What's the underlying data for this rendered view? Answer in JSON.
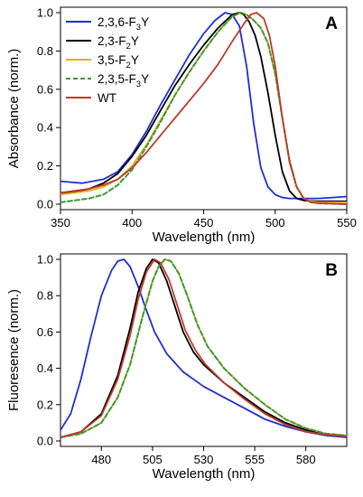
{
  "chart_data": [
    {
      "panel": "A",
      "type": "line",
      "xlabel": "Wavelength (nm)",
      "ylabel": "Absorbance (norm.)",
      "xlim": [
        350,
        550
      ],
      "ylim": [
        0.0,
        1.0
      ],
      "xticks": [
        350,
        400,
        450,
        500,
        550
      ],
      "yticks": [
        "0.0",
        "0.2",
        "0.4",
        "0.6",
        "0.8",
        "1.0"
      ],
      "legend": "top-left",
      "series": [
        {
          "name": "2,3,6-F3Y",
          "color": "#1f2fd0",
          "dash": false,
          "x": [
            350,
            365,
            380,
            390,
            400,
            410,
            420,
            430,
            440,
            450,
            458,
            465,
            470,
            475,
            480,
            485,
            490,
            495,
            500,
            505,
            510,
            520,
            530,
            540,
            550
          ],
          "y": [
            0.12,
            0.11,
            0.13,
            0.17,
            0.26,
            0.38,
            0.52,
            0.65,
            0.78,
            0.89,
            0.96,
            1.0,
            0.99,
            0.93,
            0.72,
            0.42,
            0.19,
            0.09,
            0.05,
            0.035,
            0.03,
            0.03,
            0.03,
            0.035,
            0.04
          ]
        },
        {
          "name": "2,3-F2Y",
          "color": "#000000",
          "dash": false,
          "x": [
            350,
            370,
            380,
            390,
            400,
            410,
            420,
            430,
            440,
            450,
            460,
            470,
            475,
            478,
            482,
            486,
            490,
            495,
            500,
            505,
            510,
            515,
            520,
            530,
            550
          ],
          "y": [
            0.05,
            0.08,
            0.11,
            0.16,
            0.25,
            0.36,
            0.49,
            0.62,
            0.73,
            0.83,
            0.92,
            0.99,
            1.0,
            0.99,
            0.95,
            0.88,
            0.77,
            0.58,
            0.36,
            0.17,
            0.07,
            0.03,
            0.02,
            0.015,
            0.015
          ]
        },
        {
          "name": "3,5-F2Y",
          "color": "#e0b020",
          "dash": false,
          "x": [
            350,
            370,
            380,
            390,
            400,
            410,
            420,
            430,
            440,
            450,
            460,
            470,
            476,
            480,
            485,
            490,
            495,
            500,
            505,
            510,
            515,
            520,
            525,
            530,
            550
          ],
          "y": [
            0.05,
            0.07,
            0.09,
            0.13,
            0.2,
            0.31,
            0.44,
            0.57,
            0.69,
            0.8,
            0.9,
            0.98,
            1.0,
            0.99,
            0.96,
            0.92,
            0.84,
            0.68,
            0.45,
            0.23,
            0.09,
            0.03,
            0.015,
            0.01,
            0.01
          ]
        },
        {
          "name": "2,3,5-F3Y",
          "color": "#3a9a30",
          "dash": true,
          "x": [
            350,
            370,
            380,
            390,
            400,
            410,
            420,
            430,
            440,
            450,
            460,
            470,
            476,
            480,
            485,
            490,
            495,
            500,
            505,
            510,
            515,
            520,
            525,
            530,
            550
          ],
          "y": [
            0.01,
            0.03,
            0.05,
            0.1,
            0.18,
            0.3,
            0.43,
            0.57,
            0.69,
            0.8,
            0.9,
            0.98,
            1.0,
            0.99,
            0.96,
            0.92,
            0.84,
            0.68,
            0.45,
            0.23,
            0.09,
            0.03,
            0.01,
            0.005,
            0.0
          ]
        },
        {
          "name": "WT",
          "color": "#c0392b",
          "dash": false,
          "x": [
            350,
            370,
            380,
            390,
            400,
            410,
            420,
            430,
            440,
            450,
            460,
            470,
            478,
            483,
            487,
            492,
            496,
            500,
            505,
            510,
            515,
            520,
            525,
            530,
            550
          ],
          "y": [
            0.06,
            0.08,
            0.1,
            0.13,
            0.19,
            0.27,
            0.36,
            0.45,
            0.54,
            0.63,
            0.73,
            0.85,
            0.94,
            0.99,
            1.0,
            0.97,
            0.88,
            0.72,
            0.45,
            0.22,
            0.09,
            0.03,
            0.01,
            0.005,
            0.0
          ]
        }
      ]
    },
    {
      "panel": "B",
      "type": "line",
      "xlabel": "Wavelength (nm)",
      "ylabel": "Fluoresence (norm.)",
      "xlim": [
        460,
        600
      ],
      "ylim": [
        0.0,
        1.0
      ],
      "xticks": [
        480,
        505,
        530,
        555,
        580
      ],
      "yticks": [
        "0.0",
        "0.2",
        "0.4",
        "0.6",
        "0.8",
        "1.0"
      ],
      "series": [
        {
          "name": "2,3,6-F3Y",
          "color": "#1f2fd0",
          "dash": false,
          "x": [
            460,
            465,
            470,
            475,
            480,
            485,
            488,
            491,
            494,
            498,
            502,
            506,
            512,
            520,
            530,
            540,
            550,
            560,
            570,
            580,
            590,
            600
          ],
          "y": [
            0.06,
            0.15,
            0.34,
            0.58,
            0.8,
            0.94,
            0.99,
            1.0,
            0.96,
            0.85,
            0.72,
            0.6,
            0.48,
            0.38,
            0.3,
            0.24,
            0.18,
            0.12,
            0.08,
            0.05,
            0.03,
            0.02
          ]
        },
        {
          "name": "2,3-F2Y",
          "color": "#000000",
          "dash": false,
          "x": [
            460,
            470,
            480,
            488,
            494,
            498,
            502,
            505,
            508,
            512,
            516,
            520,
            525,
            530,
            540,
            550,
            560,
            570,
            580,
            590,
            600
          ],
          "y": [
            0.02,
            0.05,
            0.15,
            0.36,
            0.62,
            0.82,
            0.95,
            1.0,
            0.98,
            0.88,
            0.74,
            0.6,
            0.49,
            0.42,
            0.32,
            0.24,
            0.16,
            0.1,
            0.06,
            0.04,
            0.03
          ]
        },
        {
          "name": "3,5-F2Y",
          "color": "#e0b020",
          "dash": false,
          "x": [
            460,
            470,
            480,
            488,
            494,
            500,
            505,
            508,
            511,
            514,
            518,
            522,
            527,
            532,
            540,
            550,
            560,
            570,
            580,
            590,
            600
          ],
          "y": [
            0.02,
            0.04,
            0.1,
            0.24,
            0.42,
            0.68,
            0.88,
            0.96,
            1.0,
            0.99,
            0.92,
            0.8,
            0.64,
            0.52,
            0.4,
            0.29,
            0.2,
            0.12,
            0.07,
            0.04,
            0.03
          ]
        },
        {
          "name": "2,3,5-F3Y",
          "color": "#3a9a30",
          "dash": true,
          "x": [
            460,
            470,
            480,
            488,
            494,
            500,
            505,
            508,
            511,
            514,
            518,
            522,
            527,
            532,
            540,
            550,
            560,
            570,
            580,
            590,
            600
          ],
          "y": [
            0.02,
            0.04,
            0.1,
            0.24,
            0.42,
            0.68,
            0.88,
            0.96,
            1.0,
            0.99,
            0.92,
            0.8,
            0.64,
            0.52,
            0.4,
            0.29,
            0.2,
            0.12,
            0.07,
            0.04,
            0.03
          ]
        },
        {
          "name": "WT",
          "color": "#c0392b",
          "dash": false,
          "x": [
            460,
            470,
            480,
            488,
            494,
            498,
            502,
            506,
            509,
            513,
            517,
            521,
            526,
            531,
            540,
            550,
            560,
            570,
            580,
            590,
            600
          ],
          "y": [
            0.02,
            0.05,
            0.14,
            0.34,
            0.58,
            0.78,
            0.93,
            1.0,
            0.98,
            0.89,
            0.75,
            0.61,
            0.5,
            0.42,
            0.32,
            0.23,
            0.15,
            0.09,
            0.05,
            0.035,
            0.025
          ]
        }
      ]
    }
  ],
  "legend": {
    "items": [
      {
        "base": "2,3,6-F",
        "sub": "3",
        "tail": "Y",
        "color": "#1f2fd0",
        "dash": false
      },
      {
        "base": "2,3-F",
        "sub": "2",
        "tail": "Y",
        "color": "#000000",
        "dash": false
      },
      {
        "base": "3,5-F",
        "sub": "2",
        "tail": "Y",
        "color": "#e0b020",
        "dash": false
      },
      {
        "base": "2,3,5-F",
        "sub": "3",
        "tail": "Y",
        "color": "#3a9a30",
        "dash": true
      },
      {
        "base": "WT",
        "sub": "",
        "tail": "",
        "color": "#c0392b",
        "dash": false
      }
    ]
  }
}
